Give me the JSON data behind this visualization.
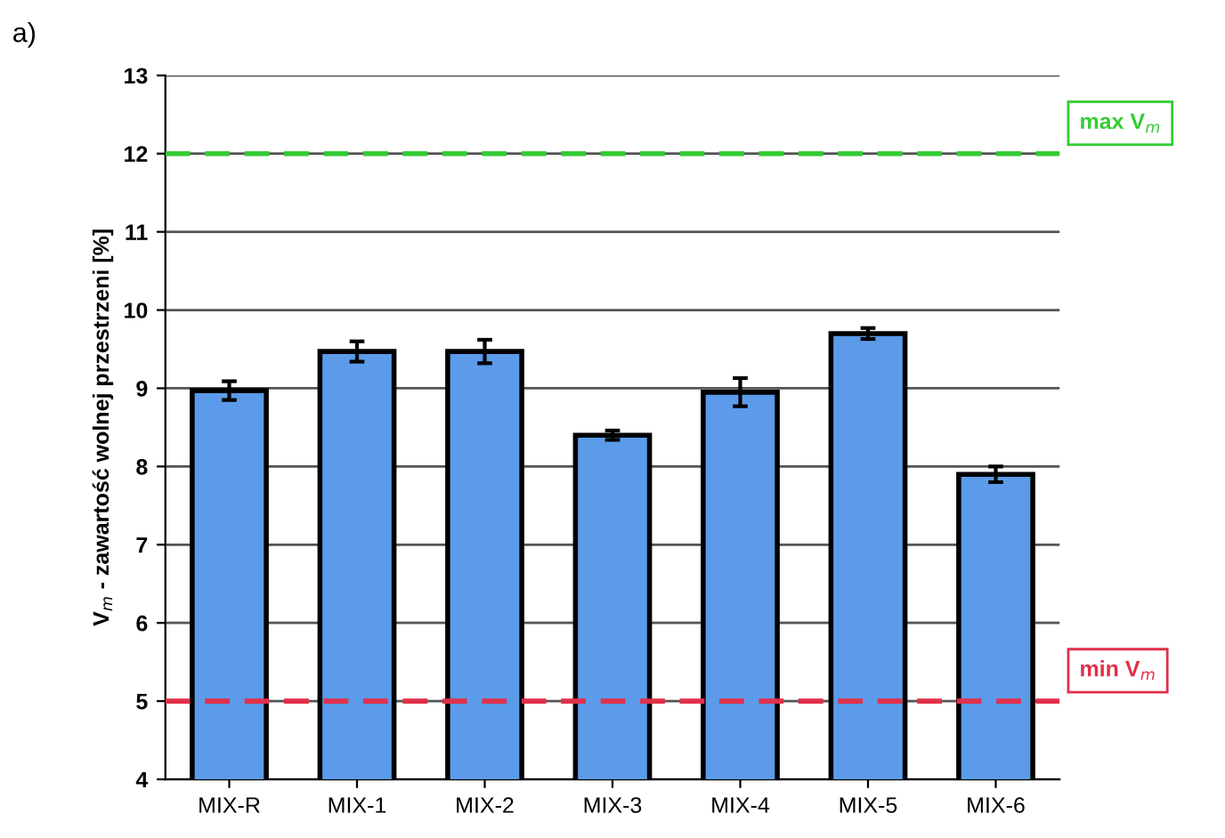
{
  "chart_data": {
    "type": "bar",
    "title": "a)",
    "ylabel": "V$_{m}$ - zawartość wolnej przestrzeni [%]",
    "categories": [
      "MIX-R",
      "MIX-1",
      "MIX-2",
      "MIX-3",
      "MIX-4",
      "MIX-5",
      "MIX-6"
    ],
    "values": [
      8.97,
      9.47,
      9.47,
      8.4,
      8.95,
      9.7,
      7.9
    ],
    "errors": [
      0.12,
      0.13,
      0.15,
      0.06,
      0.18,
      0.07,
      0.1
    ],
    "color": "#5b9bea",
    "ylim": [
      4,
      13
    ],
    "yticks": [
      4,
      5,
      6,
      7,
      8,
      9,
      10,
      11,
      12,
      13
    ],
    "grid": "y",
    "ref_lines": [
      {
        "axis": "y",
        "value": 12,
        "label": "max V$_{m}$",
        "color": "#33cc33",
        "line_style": "dashed"
      },
      {
        "axis": "y",
        "value": 5,
        "label": "min V$_{m}$",
        "color": "#e0304a",
        "line_style": "dashed"
      }
    ]
  }
}
